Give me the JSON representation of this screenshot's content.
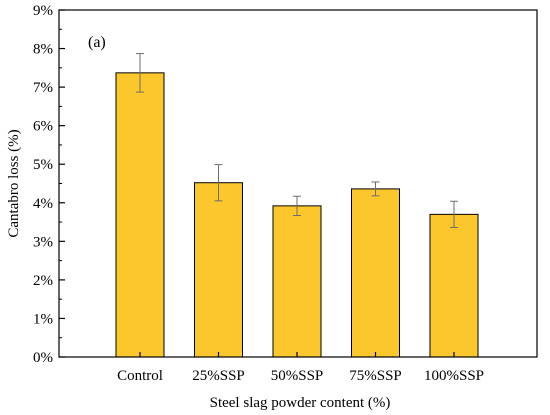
{
  "chart_data": {
    "type": "bar",
    "panel_label": "(a)",
    "categories": [
      "Control",
      "25%SSP",
      "50%SSP",
      "75%SSP",
      "100%SSP"
    ],
    "values": [
      7.37,
      4.52,
      3.92,
      4.36,
      3.7
    ],
    "errors": [
      0.5,
      0.47,
      0.25,
      0.18,
      0.34
    ],
    "xlabel": "Steel slag powder content (%)",
    "ylabel": "Cantabro loss (%)",
    "ylim": [
      0,
      9
    ],
    "yticks": [
      0,
      1,
      2,
      3,
      4,
      5,
      6,
      7,
      8,
      9
    ],
    "ytick_labels": [
      "0%",
      "1%",
      "2%",
      "3%",
      "4%",
      "5%",
      "6%",
      "7%",
      "8%",
      "9%"
    ],
    "grid": false,
    "bar_color": "#FCC72C",
    "bar_edge_color": "#000000",
    "error_bar_color": "#6e6e6e"
  }
}
